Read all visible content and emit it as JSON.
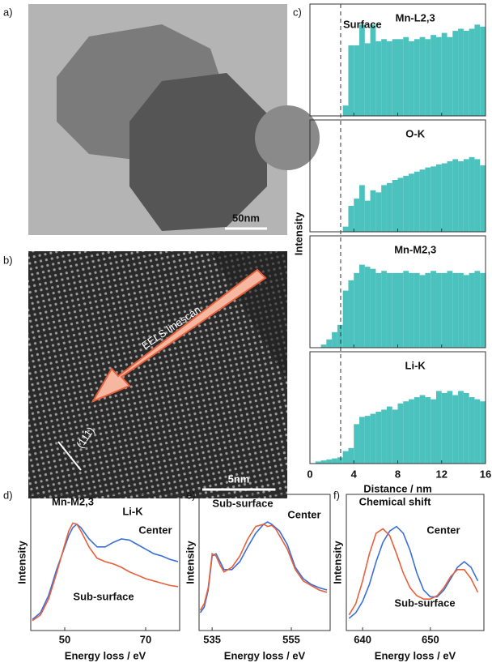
{
  "images": [
    {
      "label": "a)",
      "scale_bar": "50nm"
    },
    {
      "label": "b)",
      "arrow_label": "EELS linescan",
      "plane": "(111)",
      "scale_bar": "5nm"
    }
  ],
  "chart_data": [
    {
      "type": "histogram",
      "label": "c)",
      "xlabel": "Distance / nm",
      "ylabel": "Intensity",
      "annotation": "Surface",
      "vline": 2.8,
      "color": "#4cc2bf",
      "xlim": [
        0,
        16
      ],
      "xticks": [
        0,
        4,
        8,
        12,
        16
      ],
      "ylim": [
        0,
        100
      ],
      "bins": [
        0,
        0.5,
        1,
        1.5,
        2,
        2.5,
        3,
        3.5,
        4,
        4.5,
        5,
        5.5,
        6,
        6.5,
        7,
        7.5,
        8,
        8.5,
        9,
        9.5,
        10,
        10.5,
        11,
        11.5,
        12,
        12.5,
        13,
        13.5,
        14,
        14.5,
        15,
        15.5,
        16
      ],
      "series": [
        {
          "name": "Mn-L2,3",
          "values": [
            0,
            0,
            0,
            0,
            0,
            0,
            10,
            68,
            68,
            88,
            70,
            88,
            72,
            74,
            72,
            74,
            74,
            76,
            72,
            74,
            76,
            74,
            78,
            76,
            80,
            76,
            82,
            84,
            82,
            84,
            88,
            86
          ]
        },
        {
          "name": "O-K",
          "values": [
            0,
            0,
            0,
            0,
            0,
            0,
            5,
            25,
            32,
            45,
            30,
            40,
            38,
            45,
            47,
            50,
            52,
            54,
            56,
            58,
            60,
            62,
            63,
            65,
            66,
            68,
            70,
            68,
            70,
            72,
            70,
            64
          ]
        },
        {
          "name": "Mn-M2,3",
          "values": [
            0,
            0,
            3,
            8,
            15,
            22,
            55,
            65,
            72,
            80,
            78,
            76,
            72,
            74,
            72,
            72,
            72,
            74,
            72,
            72,
            70,
            72,
            74,
            72,
            72,
            74,
            72,
            72,
            70,
            72,
            74,
            72
          ]
        },
        {
          "name": "Li-K",
          "values": [
            0,
            2,
            3,
            4,
            5,
            6,
            12,
            15,
            38,
            45,
            46,
            48,
            50,
            52,
            55,
            52,
            58,
            60,
            62,
            64,
            66,
            64,
            62,
            70,
            68,
            70,
            66,
            70,
            68,
            64,
            62,
            60
          ]
        }
      ]
    },
    {
      "type": "line",
      "label": "d)",
      "xlabel": "Energy loss / eV",
      "ylabel": "Intensity",
      "annotations": [
        "Mn-M2,3",
        "Li-K"
      ],
      "xlim": [
        41.6,
        78.4
      ],
      "xticks": [
        50,
        70
      ],
      "ylim": [
        0,
        100
      ],
      "x": [
        42,
        44,
        46,
        48,
        50,
        51,
        52,
        53,
        54,
        56,
        58,
        60,
        62,
        64,
        66,
        68,
        70,
        72,
        74,
        76,
        78
      ],
      "series": [
        {
          "name": "Center",
          "color": "#3a6fd8",
          "values": [
            4,
            10,
            25,
            48,
            68,
            78,
            85,
            88,
            85,
            75,
            68,
            68,
            72,
            75,
            74,
            70,
            66,
            62,
            60,
            57,
            55
          ]
        },
        {
          "name": "Sub-surface",
          "color": "#e8603c",
          "values": [
            3,
            8,
            22,
            45,
            70,
            82,
            89,
            88,
            82,
            68,
            58,
            55,
            53,
            50,
            46,
            43,
            40,
            38,
            36,
            34,
            33
          ]
        }
      ]
    },
    {
      "type": "line",
      "label": "e)",
      "xlabel": "Energy loss / eV",
      "ylabel": "Intensity",
      "annotations": [],
      "xlim": [
        531.7,
        564.8
      ],
      "xticks": [
        535,
        555
      ],
      "ylim": [
        0,
        100
      ],
      "x": [
        532,
        533,
        534,
        535,
        536,
        537,
        538,
        540,
        542,
        544,
        546,
        548,
        549,
        550,
        551,
        552,
        554,
        556,
        558,
        560,
        562,
        564
      ],
      "series": [
        {
          "name": "Center",
          "color": "#3a6fd8",
          "values": [
            10,
            15,
            30,
            60,
            62,
            55,
            48,
            48,
            55,
            68,
            80,
            88,
            90,
            88,
            85,
            82,
            70,
            50,
            40,
            35,
            32,
            30
          ]
        },
        {
          "name": "Sub-surface",
          "color": "#e8603c",
          "values": [
            12,
            18,
            32,
            62,
            60,
            52,
            46,
            50,
            60,
            75,
            86,
            88,
            86,
            87,
            84,
            78,
            66,
            48,
            38,
            34,
            30,
            28
          ]
        }
      ]
    },
    {
      "type": "line",
      "label": "f)",
      "xlabel": "Energy loss / eV",
      "ylabel": "Intensity",
      "annotations": [
        "Chemical shift"
      ],
      "xlim": [
        637.6,
        657.9
      ],
      "xticks": [
        640,
        650
      ],
      "ylim": [
        0,
        100
      ],
      "x": [
        638,
        639,
        640,
        641,
        642,
        643,
        644,
        645,
        646,
        647,
        648,
        649,
        650,
        651,
        652,
        653,
        654,
        655,
        656,
        657
      ],
      "series": [
        {
          "name": "Center",
          "color": "#3a6fd8",
          "values": [
            5,
            10,
            20,
            35,
            55,
            72,
            82,
            86,
            80,
            65,
            45,
            30,
            24,
            24,
            30,
            40,
            50,
            55,
            50,
            38
          ]
        },
        {
          "name": "Sub-surface",
          "color": "#e8603c",
          "values": [
            8,
            18,
            38,
            62,
            80,
            84,
            78,
            62,
            45,
            32,
            25,
            22,
            22,
            25,
            32,
            42,
            48,
            48,
            40,
            28
          ]
        }
      ]
    }
  ]
}
